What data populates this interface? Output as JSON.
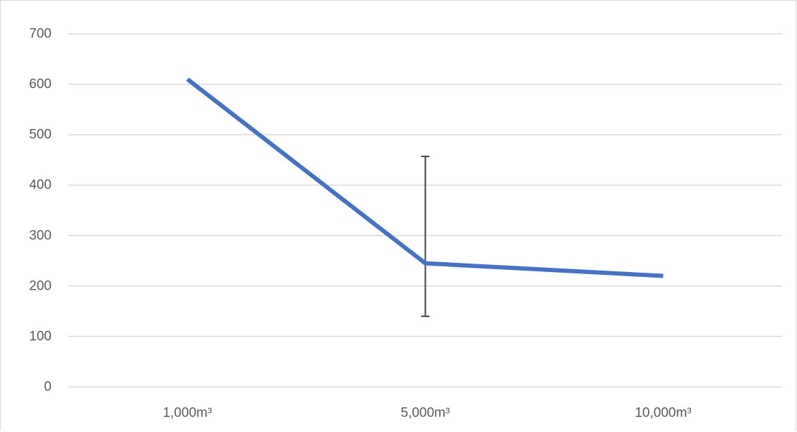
{
  "chart_data": {
    "type": "line",
    "categories": [
      "1,000m³",
      "5,000m³",
      "10,000m³"
    ],
    "series": [
      {
        "values": [
          610,
          245,
          220
        ],
        "color": "#4472c4",
        "error_bars": [
          null,
          {
            "low": 140,
            "high": 457
          },
          null
        ]
      }
    ],
    "ylim": [
      0,
      700
    ],
    "yticks": [
      0,
      100,
      200,
      300,
      400,
      500,
      600,
      700
    ],
    "ytick_labels": [
      "0",
      "100",
      "200",
      "300",
      "400",
      "500",
      "600",
      "700"
    ],
    "grid": true,
    "legend": "none",
    "gridline_color": "#d9d9d9",
    "error_bar_color": "#404040",
    "title": "",
    "xlabel": "",
    "ylabel": ""
  }
}
